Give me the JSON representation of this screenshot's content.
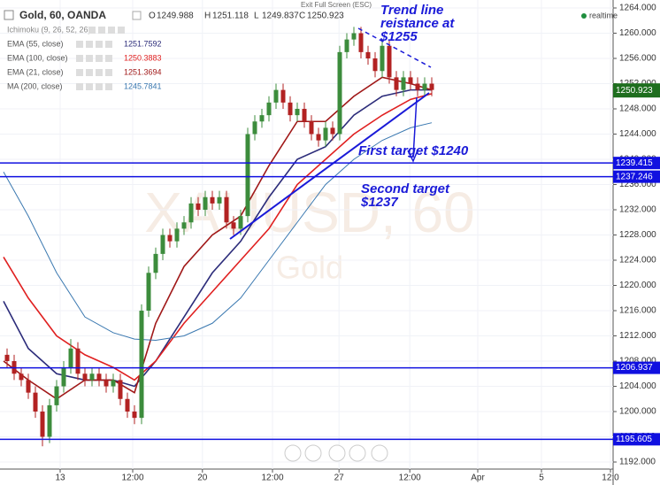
{
  "chart_data": {
    "type": "candlestick",
    "title": "Gold, 60, OANDA",
    "quote": [
      {
        "label": "O",
        "value": 1249.988
      },
      {
        "label": "H",
        "value": 1251.118
      },
      {
        "label": "L",
        "value": 1249.837
      },
      {
        "label": "C",
        "value": 1250.923
      }
    ],
    "ichimoku": "Ichimoku (9, 26, 52, 26)",
    "fullscreen_hint": "Exit Full Screen (ESC)",
    "realtime": "realtime",
    "watermark": "XAUUSD, 60",
    "watermark_sub": "Gold",
    "annotations": {
      "resistance": [
        "Trend line",
        "reistance at",
        "$1255"
      ],
      "first_target": [
        "First target $1240"
      ],
      "second_target": [
        "Second target",
        "$1237"
      ]
    },
    "x": [
      1,
      2,
      3,
      4,
      5,
      6,
      7,
      8,
      9,
      10,
      11,
      12,
      13,
      14,
      15,
      16,
      17,
      18,
      19,
      20,
      21,
      22,
      23,
      24,
      25,
      26,
      27,
      28,
      29,
      30,
      31,
      32,
      33,
      34,
      35,
      36,
      37,
      38,
      39,
      40,
      41,
      42,
      43,
      44,
      45,
      46,
      47,
      48,
      49,
      50,
      51,
      52,
      53,
      54,
      55,
      56,
      57,
      58,
      59,
      60,
      61
    ],
    "open": [
      1209,
      1208,
      1206,
      1205,
      1203,
      1200,
      1196,
      1201,
      1204,
      1207,
      1210,
      1206,
      1205,
      1206,
      1205,
      1204,
      1205,
      1202,
      1200,
      1199,
      1216,
      1222,
      1225,
      1228,
      1227,
      1229,
      1230,
      1233,
      1232,
      1234,
      1233,
      1234,
      1230,
      1229,
      1231,
      1244,
      1246,
      1247,
      1249,
      1251,
      1249,
      1247,
      1248,
      1246,
      1244,
      1243,
      1245,
      1244,
      1257,
      1259,
      1260,
      1257,
      1256,
      1254,
      1258,
      1253,
      1251,
      1253,
      1252,
      1251,
      1252
    ],
    "high": [
      1210,
      1209,
      1207,
      1206,
      1204,
      1201,
      1202,
      1205,
      1208,
      1211.5,
      1211,
      1207,
      1207,
      1207,
      1206,
      1206,
      1206,
      1203,
      1201,
      1217,
      1223,
      1226,
      1229,
      1229,
      1230,
      1231,
      1234,
      1234,
      1235,
      1235,
      1235,
      1235,
      1231,
      1232,
      1245,
      1247,
      1248,
      1250,
      1252,
      1252,
      1250,
      1249,
      1249,
      1247,
      1245,
      1246,
      1246,
      1258,
      1260,
      1261,
      1261,
      1258,
      1257,
      1259,
      1259,
      1254,
      1254,
      1254,
      1253,
      1253,
      1253
    ],
    "low": [
      1207,
      1205,
      1204,
      1202,
      1199,
      1194.5,
      1195,
      1200,
      1203,
      1206,
      1205,
      1204,
      1204,
      1204,
      1203,
      1203,
      1201,
      1199,
      1198,
      1198,
      1215,
      1221,
      1224,
      1226,
      1226,
      1228,
      1229,
      1231,
      1231,
      1232,
      1232,
      1229,
      1228,
      1228,
      1230,
      1243,
      1245,
      1246,
      1248,
      1248,
      1246,
      1246,
      1245,
      1243,
      1242,
      1242,
      1243,
      1243,
      1256,
      1258,
      1256,
      1255,
      1253,
      1253,
      1252,
      1250,
      1250,
      1251,
      1250,
      1250,
      1250
    ],
    "close": [
      1208,
      1206,
      1205,
      1203,
      1200,
      1196,
      1201,
      1204,
      1207,
      1210,
      1206,
      1205,
      1206,
      1205,
      1204,
      1205,
      1202,
      1200,
      1199,
      1216,
      1222,
      1225,
      1228,
      1227,
      1229,
      1230,
      1233,
      1232,
      1234,
      1233,
      1234,
      1230,
      1229,
      1231,
      1244,
      1246,
      1247,
      1249,
      1251,
      1249,
      1247,
      1248,
      1246,
      1244,
      1243,
      1245,
      1244,
      1257,
      1259,
      1260,
      1257,
      1256,
      1254,
      1258,
      1253,
      1251,
      1253,
      1252,
      1251,
      1252,
      1251
    ],
    "up_color": "#3c8c3c",
    "down_color": "#b22222",
    "series": [
      {
        "name": "EMA (55, close)",
        "last_value": 1251.7592,
        "color": "#2c2c7a",
        "x": [
          0.5,
          4,
          8,
          12,
          16,
          19,
          22,
          26,
          30,
          34,
          38,
          42,
          46,
          50,
          54,
          58,
          61
        ],
        "values": [
          1217.5,
          1210,
          1206,
          1205,
          1205,
          1204,
          1208,
          1215,
          1222,
          1227,
          1234,
          1240,
          1242,
          1247,
          1250,
          1251,
          1251
        ]
      },
      {
        "name": "EMA (100, close)",
        "last_value": 1250.3883,
        "color": "#e02020",
        "x": [
          0.5,
          4,
          8,
          12,
          16,
          19,
          22,
          26,
          30,
          34,
          38,
          42,
          46,
          50,
          54,
          58,
          61
        ],
        "values": [
          1224.5,
          1218,
          1212,
          1209,
          1207,
          1205,
          1208,
          1214,
          1219,
          1224,
          1229,
          1236,
          1240,
          1244,
          1247,
          1249.5,
          1250.4
        ]
      },
      {
        "name": "EMA (21, close)",
        "last_value": 1251.3694,
        "color": "#a01818",
        "x": [
          0.5,
          4,
          8,
          12,
          16,
          19,
          22,
          26,
          30,
          34,
          38,
          42,
          46,
          50,
          54,
          58,
          61
        ],
        "values": [
          1208,
          1205,
          1202,
          1205,
          1205,
          1203,
          1214,
          1223,
          1228,
          1231,
          1239,
          1246,
          1246,
          1250,
          1253,
          1252,
          1251
        ]
      },
      {
        "name": "MA (200, close)",
        "last_value": 1245.7841,
        "color": "#3a78b0",
        "x": [
          0.5,
          4,
          8,
          12,
          16,
          19,
          22,
          26,
          30,
          34,
          38,
          42,
          46,
          50,
          54,
          58,
          61
        ],
        "values": [
          1238,
          1231,
          1222,
          1215,
          1212.5,
          1211.5,
          1211.3,
          1212,
          1214,
          1218,
          1224,
          1230,
          1236,
          1240,
          1243,
          1245,
          1245.8
        ]
      }
    ],
    "levels": [
      1239.415,
      1237.246,
      1206.937,
      1195.605
    ],
    "level_color": "#1010e0",
    "last_price": 1250.923,
    "last_price_color": "#1e6e1e",
    "xlim": [
      0,
      86.625
    ],
    "ylim": [
      1190.88,
      1265.263
    ],
    "xticks": [
      {
        "value": 8.5,
        "label": "13"
      },
      {
        "value": 18.75,
        "label": "12:00"
      },
      {
        "value": 28.6,
        "label": "20"
      },
      {
        "value": 38.5,
        "label": "12:00"
      },
      {
        "value": 47.9,
        "label": "27"
      },
      {
        "value": 57.9,
        "label": "12:00"
      },
      {
        "value": 67.5,
        "label": "Apr"
      },
      {
        "value": 76.5,
        "label": "5"
      },
      {
        "value": 86.25,
        "label": "12:0"
      }
    ],
    "yticks": [
      {
        "value": 1192,
        "label": "1192.000"
      },
      {
        "value": 1196,
        "label": "1196.000"
      },
      {
        "value": 1200,
        "label": "1200.000"
      },
      {
        "value": 1204,
        "label": "1204.000"
      },
      {
        "value": 1208,
        "label": "1208.000"
      },
      {
        "value": 1212,
        "label": "1212.000"
      },
      {
        "value": 1216,
        "label": "1216.000"
      },
      {
        "value": 1220,
        "label": "1220.000"
      },
      {
        "value": 1224,
        "label": "1224.000"
      },
      {
        "value": 1228,
        "label": "1228.000"
      },
      {
        "value": 1232,
        "label": "1232.000"
      },
      {
        "value": 1236,
        "label": "1236.000"
      },
      {
        "value": 1240,
        "label": "1240.000"
      },
      {
        "value": 1244,
        "label": "1244.000"
      },
      {
        "value": 1248,
        "label": "1248.000"
      },
      {
        "value": 1252,
        "label": "1252.000"
      },
      {
        "value": 1256,
        "label": "1256.000"
      },
      {
        "value": 1260,
        "label": "1260.000"
      },
      {
        "value": 1264,
        "label": "1264.000"
      }
    ],
    "grid": true
  }
}
